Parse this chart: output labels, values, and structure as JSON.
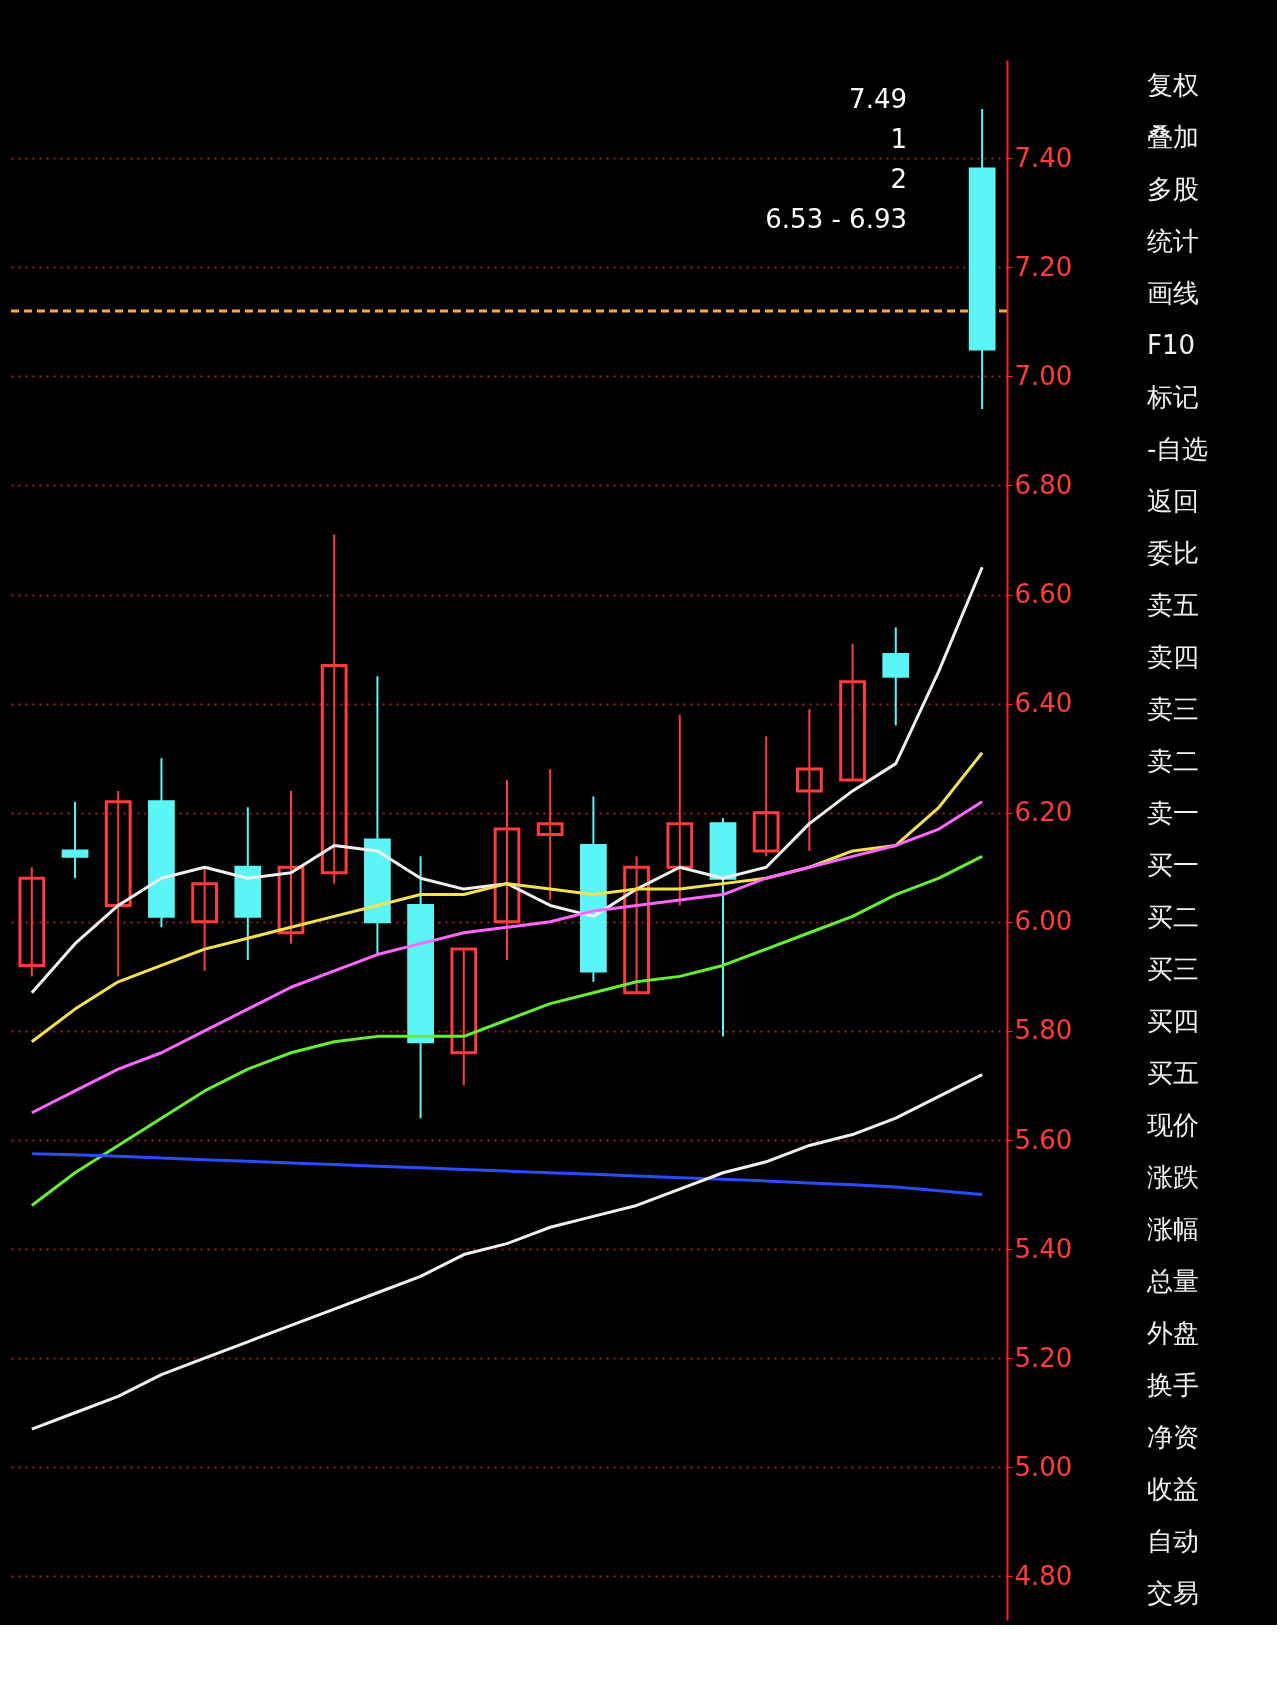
{
  "chart_data": [
    {
      "type": "candlestick",
      "categories": [
        null,
        null,
        null,
        null,
        null,
        null,
        null,
        null,
        null,
        null,
        null,
        null,
        null,
        null,
        null,
        null,
        null,
        null,
        null,
        null,
        null,
        null,
        null
      ],
      "ohlc": [
        [
          5.92,
          6.1,
          5.9,
          6.08
        ],
        [
          6.13,
          6.22,
          6.08,
          6.12
        ],
        [
          6.03,
          6.24,
          5.9,
          6.22
        ],
        [
          6.22,
          6.3,
          5.99,
          6.01
        ],
        [
          6.0,
          6.1,
          5.91,
          6.07
        ],
        [
          6.1,
          6.21,
          5.93,
          6.01
        ],
        [
          5.98,
          6.24,
          5.96,
          6.1
        ],
        [
          6.09,
          6.71,
          6.07,
          6.47
        ],
        [
          6.15,
          6.45,
          5.94,
          6.0
        ],
        [
          6.03,
          6.12,
          5.64,
          5.78
        ],
        [
          5.76,
          5.95,
          5.7,
          5.95
        ],
        [
          6.0,
          6.26,
          5.93,
          6.17
        ],
        [
          6.16,
          6.28,
          6.04,
          6.18
        ],
        [
          6.14,
          6.23,
          5.89,
          5.91
        ],
        [
          5.87,
          6.12,
          5.87,
          6.1
        ],
        [
          6.1,
          6.38,
          6.03,
          6.18
        ],
        [
          6.18,
          6.19,
          5.79,
          6.08
        ],
        [
          6.13,
          6.34,
          6.12,
          6.2
        ],
        [
          6.24,
          6.39,
          6.13,
          6.28
        ],
        [
          6.26,
          6.51,
          6.26,
          6.44
        ],
        [
          6.49,
          6.54,
          6.36,
          6.45
        ],
        null,
        [
          7.38,
          7.49,
          6.94,
          7.05
        ]
      ],
      "colors": [
        "#ff3b3b",
        "#5cf5f5",
        "#ff3b3b",
        "#5cf5f5",
        "#ff3b3b",
        "#5cf5f5",
        "#ff3b3b",
        "#ff3b3b",
        "#5cf5f5",
        "#5cf5f5",
        "#ff3b3b",
        "#ff3b3b",
        "#ff3b3b",
        "#5cf5f5",
        "#ff3b3b",
        "#ff3b3b",
        "#5cf5f5",
        "#ff3b3b",
        "#ff3b3b",
        "#ff3b3b",
        "#5cf5f5",
        null,
        "#5cf5f5"
      ],
      "series": [
        {
          "type": "line",
          "color": "#f0f0f0",
          "values": [
            5.87,
            5.96,
            6.03,
            6.08,
            6.1,
            6.08,
            6.09,
            6.14,
            6.13,
            6.08,
            6.06,
            6.07,
            6.03,
            6.01,
            6.06,
            6.1,
            6.08,
            6.1,
            6.18,
            6.24,
            6.29,
            6.46,
            6.65
          ]
        },
        {
          "type": "line",
          "color": "#f5e050",
          "values": [
            5.78,
            5.84,
            5.89,
            5.92,
            5.95,
            5.97,
            5.99,
            6.01,
            6.03,
            6.05,
            6.05,
            6.07,
            6.06,
            6.05,
            6.06,
            6.06,
            6.07,
            6.08,
            6.1,
            6.13,
            6.14,
            6.21,
            6.31
          ]
        },
        {
          "type": "line",
          "color": "#ff66ff",
          "values": [
            5.65,
            5.69,
            5.73,
            5.76,
            5.8,
            5.84,
            5.88,
            5.91,
            5.94,
            5.96,
            5.98,
            5.99,
            6.0,
            6.02,
            6.03,
            6.04,
            6.05,
            6.08,
            6.1,
            6.12,
            6.14,
            6.17,
            6.22
          ]
        },
        {
          "type": "line",
          "color": "#66ee33",
          "values": [
            5.48,
            5.54,
            5.59,
            5.64,
            5.69,
            5.73,
            5.76,
            5.78,
            5.79,
            5.79,
            5.79,
            5.82,
            5.85,
            5.87,
            5.89,
            5.9,
            5.92,
            5.95,
            5.98,
            6.01,
            6.05,
            6.08,
            6.12
          ]
        },
        {
          "type": "line",
          "color": "#2a4cff",
          "values": [
            5.575,
            5.573,
            5.57,
            5.567,
            5.564,
            5.561,
            5.558,
            5.555,
            5.552,
            5.549,
            5.546,
            5.543,
            5.54,
            5.537,
            5.534,
            5.531,
            5.528,
            5.525,
            5.521,
            5.518,
            5.514,
            5.507,
            5.5
          ]
        },
        {
          "type": "line",
          "color": "#f0f0f0",
          "values": [
            5.07,
            5.1,
            5.13,
            5.17,
            5.2,
            5.23,
            5.26,
            5.29,
            5.32,
            5.35,
            5.39,
            5.41,
            5.44,
            5.46,
            5.48,
            5.51,
            5.54,
            5.56,
            5.59,
            5.61,
            5.64,
            5.68,
            5.72
          ]
        }
      ],
      "ylim": [
        4.72,
        7.58
      ],
      "yticks": [
        {
          "value": 4.8,
          "label": "4.80"
        },
        {
          "value": 5.0,
          "label": "5.00"
        },
        {
          "value": 5.2,
          "label": "5.20"
        },
        {
          "value": 5.4,
          "label": "5.40"
        },
        {
          "value": 5.6,
          "label": "5.60"
        },
        {
          "value": 5.8,
          "label": "5.80"
        },
        {
          "value": 6.0,
          "label": "6.00"
        },
        {
          "value": 6.2,
          "label": "6.20"
        },
        {
          "value": 6.4,
          "label": "6.40"
        },
        {
          "value": 6.6,
          "label": "6.60"
        },
        {
          "value": 6.8,
          "label": "6.80"
        },
        {
          "value": 7.0,
          "label": "7.00"
        },
        {
          "value": 7.2,
          "label": "7.20"
        },
        {
          "value": 7.4,
          "label": "7.40"
        }
      ],
      "grid": "y",
      "ref_lines": [
        {
          "axis": "y",
          "value": 7.12,
          "color": "#ffaa33",
          "line_style": "dashed"
        }
      ],
      "annotations": [
        "7.49",
        "1",
        "2",
        "6.53 - 6.93"
      ]
    },
    {
      "type": "other",
      "annotations": [
        "复权",
        "叠加",
        "多股",
        "统计",
        "画线",
        "F10",
        "标记",
        "-自选",
        "返回",
        "委比",
        "卖五",
        "卖四",
        "卖三",
        "卖二",
        "卖一",
        "买一",
        "买二",
        "买三",
        "买四",
        "买五",
        "现价",
        "涨跌",
        "涨幅",
        "总量",
        "外盘",
        "换手",
        "净资",
        "收益",
        "自动",
        "交易"
      ]
    }
  ]
}
